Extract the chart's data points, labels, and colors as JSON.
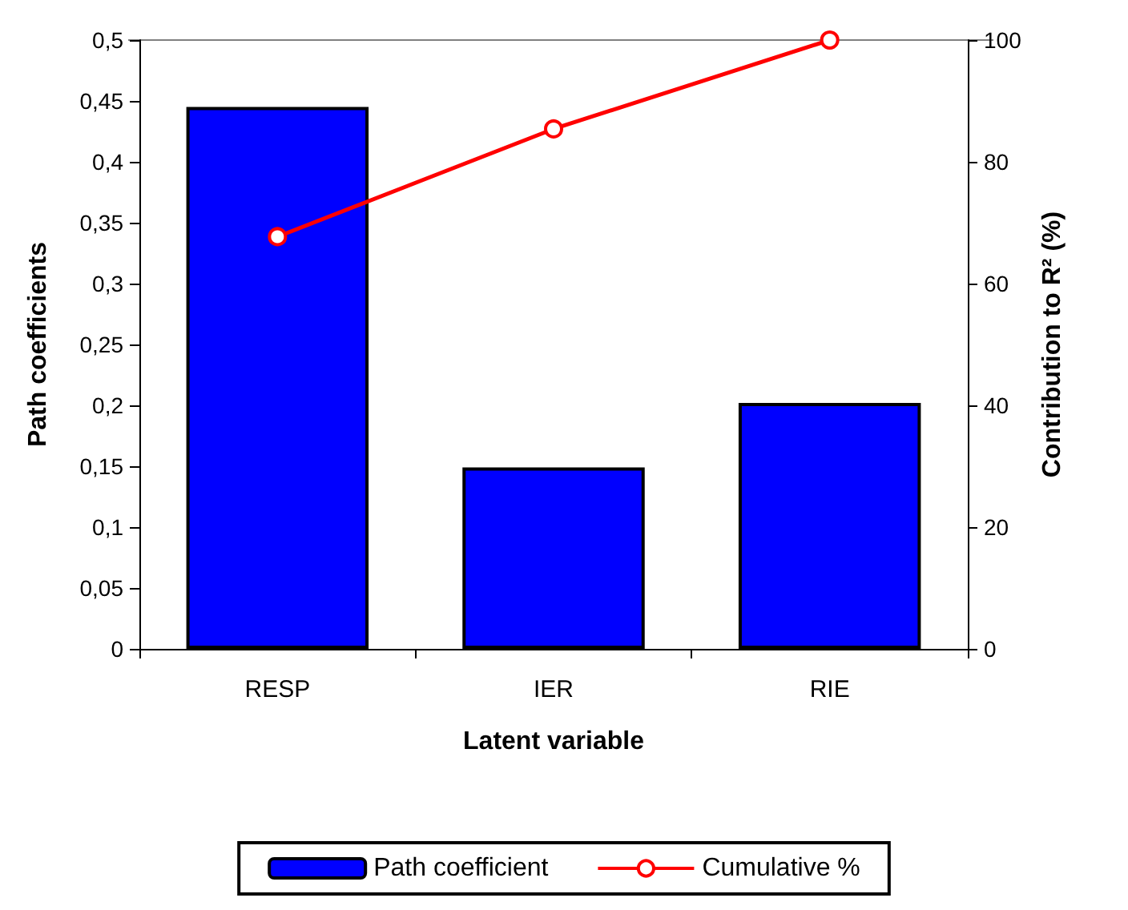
{
  "chart_data": {
    "type": "bar",
    "xlabel": "Latent variable",
    "ylabel": "Path coefficients",
    "y2label": "Contribution to R² (%)",
    "categories": [
      "RESP",
      "IER",
      "RIE"
    ],
    "series": [
      {
        "name": "Path coefficient",
        "color": "#0000ff",
        "values": [
          0.445,
          0.149,
          0.202
        ]
      },
      {
        "name": "Cumulative %",
        "type": "line",
        "axis": "y2",
        "color": "#ff0000",
        "marker": "circle",
        "values": [
          67.7,
          85.4,
          100
        ]
      }
    ],
    "ylim": [
      0,
      0.5
    ],
    "yticks": [
      0,
      {
        "value": 0.05,
        "label": "0,05"
      },
      {
        "value": 0.1,
        "label": "0,1"
      },
      {
        "value": 0.15,
        "label": "0,15"
      },
      {
        "value": 0.2,
        "label": "0,2"
      },
      {
        "value": 0.25,
        "label": "0,25"
      },
      {
        "value": 0.3,
        "label": "0,3"
      },
      {
        "value": 0.35,
        "label": "0,35"
      },
      {
        "value": 0.4,
        "label": "0,4"
      },
      {
        "value": 0.45,
        "label": "0,45"
      },
      {
        "value": 0.5,
        "label": "0,5"
      }
    ],
    "y2lim": [
      0,
      100
    ],
    "y2ticks": [
      0,
      20,
      40,
      60,
      80,
      100
    ],
    "grid": false,
    "legend": "bottom"
  }
}
